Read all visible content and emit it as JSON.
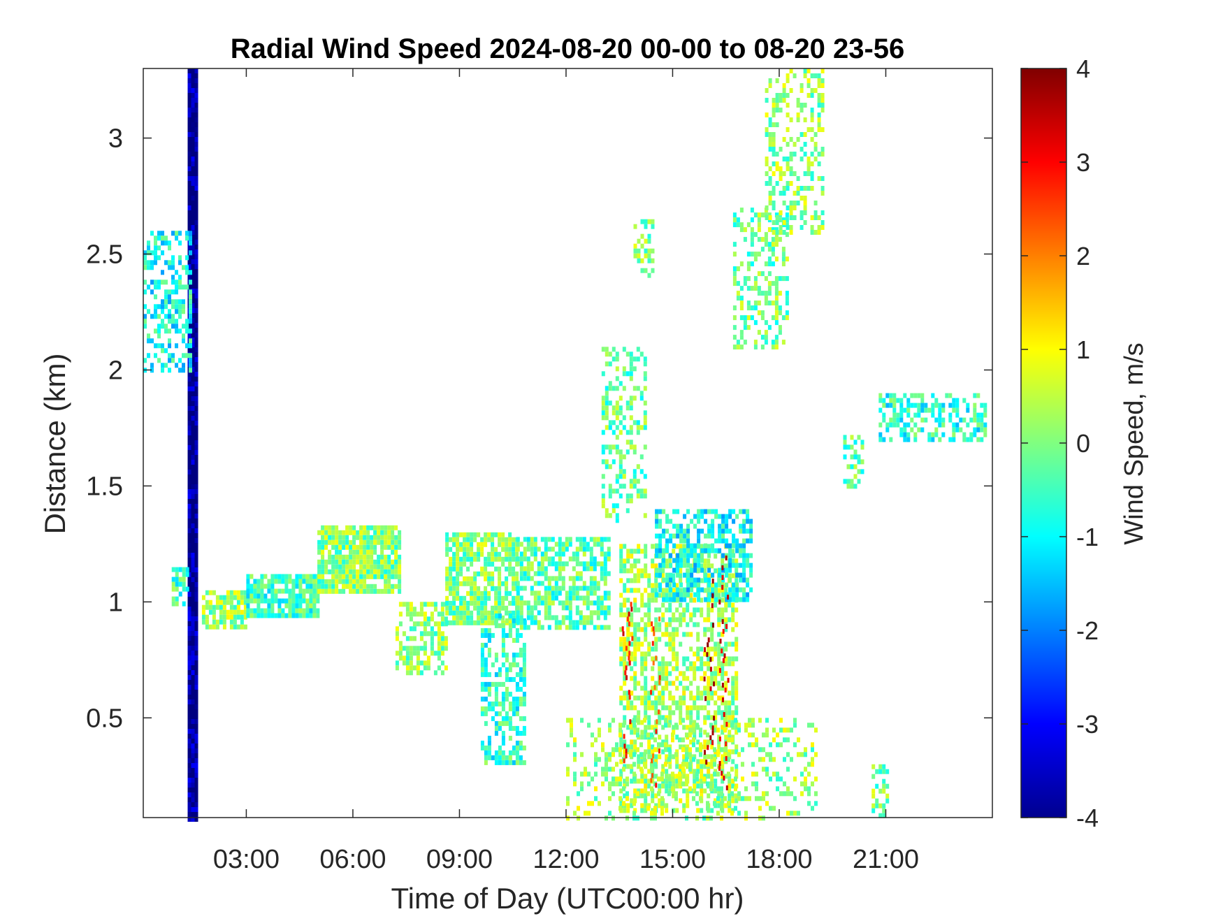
{
  "chart_data": {
    "type": "heatmap",
    "title": "Radial Wind Speed 2024-08-20 00-00 to 08-20 23-56",
    "xlabel": "Time of Day (UTC00:00 hr)",
    "ylabel": "Distance (km)",
    "colorbar_label": "Wind Speed, m/s",
    "xlim_hours": [
      0.1,
      24.0
    ],
    "ylim_km": [
      0.07,
      3.3
    ],
    "clim": [
      -4,
      4
    ],
    "colormap": "jet",
    "xticks": [
      {
        "value": 3,
        "label": "03:00"
      },
      {
        "value": 6,
        "label": "06:00"
      },
      {
        "value": 9,
        "label": "09:00"
      },
      {
        "value": 12,
        "label": "12:00"
      },
      {
        "value": 15,
        "label": "15:00"
      },
      {
        "value": 18,
        "label": "18:00"
      },
      {
        "value": 21,
        "label": "21:00"
      }
    ],
    "yticks": [
      {
        "value": 0.5,
        "label": "0.5"
      },
      {
        "value": 1,
        "label": "1"
      },
      {
        "value": 1.5,
        "label": "1.5"
      },
      {
        "value": 2,
        "label": "2"
      },
      {
        "value": 2.5,
        "label": "2.5"
      },
      {
        "value": 3,
        "label": "3"
      }
    ],
    "colorbar_ticks": [
      {
        "value": 4,
        "label": "4"
      },
      {
        "value": 3,
        "label": "3"
      },
      {
        "value": 2,
        "label": "2"
      },
      {
        "value": 1,
        "label": "1"
      },
      {
        "value": 0,
        "label": "0"
      },
      {
        "value": -1,
        "label": "-1"
      },
      {
        "value": -2,
        "label": "-2"
      },
      {
        "value": -3,
        "label": "-3"
      },
      {
        "value": -4,
        "label": "-4"
      }
    ],
    "regions": [
      {
        "t0": 1.35,
        "t1": 1.6,
        "d0": 0.07,
        "d1": 3.3,
        "v": -3.9,
        "density": 1.0
      },
      {
        "t0": 0.1,
        "t1": 1.4,
        "d0": 2.0,
        "d1": 2.6,
        "v": -0.9,
        "density": 0.45
      },
      {
        "t0": 0.9,
        "t1": 1.3,
        "d0": 1.0,
        "d1": 1.15,
        "v": -0.5,
        "density": 0.6
      },
      {
        "t0": 1.75,
        "t1": 3.0,
        "d0": 0.9,
        "d1": 1.05,
        "v": 0.2,
        "density": 0.75
      },
      {
        "t0": 3.0,
        "t1": 5.0,
        "d0": 0.95,
        "d1": 1.12,
        "v": -0.5,
        "density": 0.85
      },
      {
        "t0": 5.0,
        "t1": 7.3,
        "d0": 1.05,
        "d1": 1.33,
        "v": 0.0,
        "density": 0.9
      },
      {
        "t0": 7.2,
        "t1": 8.6,
        "d0": 0.7,
        "d1": 1.0,
        "v": 0.1,
        "density": 0.55
      },
      {
        "t0": 8.6,
        "t1": 10.6,
        "d0": 0.9,
        "d1": 1.3,
        "v": 0.0,
        "density": 0.8
      },
      {
        "t0": 9.6,
        "t1": 10.8,
        "d0": 0.3,
        "d1": 0.95,
        "v": -0.6,
        "density": 0.5
      },
      {
        "t0": 10.6,
        "t1": 13.2,
        "d0": 0.9,
        "d1": 1.28,
        "v": -0.3,
        "density": 0.65
      },
      {
        "t0": 13.0,
        "t1": 14.2,
        "d0": 1.35,
        "d1": 2.1,
        "v": -0.2,
        "density": 0.35
      },
      {
        "t0": 13.5,
        "t1": 16.8,
        "d0": 0.1,
        "d1": 1.25,
        "v": 0.3,
        "density": 0.55
      },
      {
        "t0": 14.5,
        "t1": 17.2,
        "d0": 1.0,
        "d1": 1.4,
        "v": -0.9,
        "density": 0.6
      },
      {
        "t0": 12.0,
        "t1": 19.0,
        "d0": 0.07,
        "d1": 0.5,
        "v": 0.2,
        "density": 0.25
      },
      {
        "t0": 13.9,
        "t1": 14.4,
        "d0": 2.4,
        "d1": 2.65,
        "v": 0.0,
        "density": 0.5
      },
      {
        "t0": 16.7,
        "t1": 18.2,
        "d0": 2.1,
        "d1": 2.7,
        "v": -0.1,
        "density": 0.4
      },
      {
        "t0": 17.6,
        "t1": 19.2,
        "d0": 2.6,
        "d1": 3.3,
        "v": 0.1,
        "density": 0.4
      },
      {
        "t0": 20.8,
        "t1": 23.8,
        "d0": 1.7,
        "d1": 1.9,
        "v": -0.7,
        "density": 0.5
      },
      {
        "t0": 19.8,
        "t1": 20.3,
        "d0": 1.5,
        "d1": 1.72,
        "v": -0.3,
        "density": 0.4
      },
      {
        "t0": 20.6,
        "t1": 21.0,
        "d0": 0.07,
        "d1": 0.3,
        "v": 0.0,
        "density": 0.5
      }
    ],
    "strong_streaks": [
      {
        "t": 13.7,
        "d0": 0.3,
        "d1": 1.0,
        "v": 3.0
      },
      {
        "t": 14.5,
        "d0": 0.2,
        "d1": 1.0,
        "v": 2.5
      },
      {
        "t": 16.0,
        "d0": 0.3,
        "d1": 1.1,
        "v": 3.5
      },
      {
        "t": 16.4,
        "d0": 0.2,
        "d1": 1.2,
        "v": 3.2
      }
    ]
  }
}
